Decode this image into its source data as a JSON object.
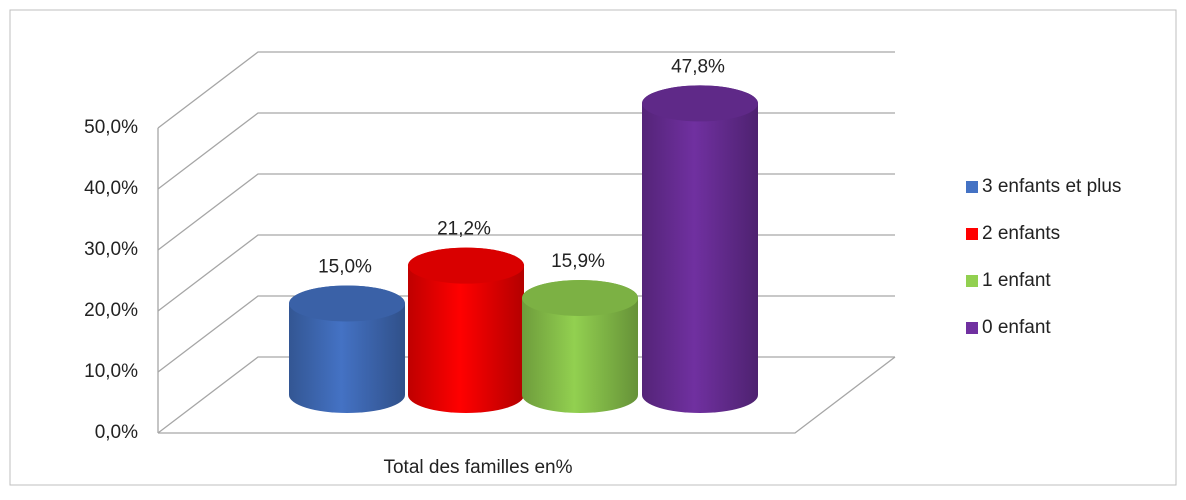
{
  "chart_data": {
    "type": "bar3d",
    "categories": [
      "Total des familles en%"
    ],
    "series": [
      {
        "name": "3 enfants et plus",
        "color": "#4472c4",
        "values": [
          15.0
        ],
        "value_labels": [
          "15,0%"
        ]
      },
      {
        "name": "2 enfants",
        "color": "#ff0000",
        "values": [
          21.2
        ],
        "value_labels": [
          "21,2%"
        ]
      },
      {
        "name": "1 enfant",
        "color": "#92d050",
        "values": [
          15.9
        ],
        "value_labels": [
          "15,9%"
        ]
      },
      {
        "name": "0 enfant",
        "color": "#7030a0",
        "values": [
          47.8
        ],
        "value_labels": [
          "47,8%"
        ]
      }
    ],
    "ylim": [
      0,
      50
    ],
    "yticks": [
      {
        "value": 0,
        "label": "0,0%"
      },
      {
        "value": 10,
        "label": "10,0%"
      },
      {
        "value": 20,
        "label": "20,0%"
      },
      {
        "value": 30,
        "label": "30,0%"
      },
      {
        "value": 40,
        "label": "40,0%"
      },
      {
        "value": 50,
        "label": "50,0%"
      }
    ],
    "grid": true,
    "legend": "right"
  }
}
